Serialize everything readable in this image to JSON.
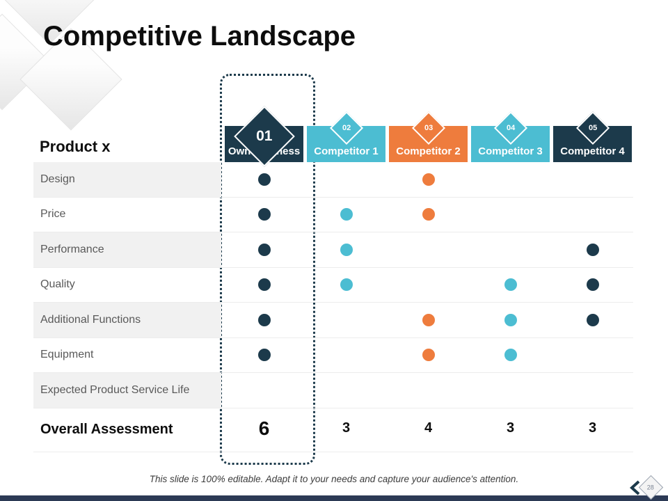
{
  "slide": {
    "title": "Competitive Landscape",
    "footer_note": "This slide is 100% editable. Adapt it to your needs and capture your audience's attention.",
    "page_number": "28"
  },
  "colors": {
    "navy": "#1c3a4b",
    "teal": "#4cbdd2",
    "orange": "#ee7c3d",
    "row_alt": "#f1f1f1",
    "bottom_bar": "#2c3a55"
  },
  "table": {
    "corner_label": "Product x",
    "columns": [
      {
        "number": "01",
        "label": "Own Business",
        "color_key": "navy",
        "highlighted": true
      },
      {
        "number": "02",
        "label": "Competitor 1",
        "color_key": "teal",
        "highlighted": false
      },
      {
        "number": "03",
        "label": "Competitor 2",
        "color_key": "orange",
        "highlighted": false
      },
      {
        "number": "04",
        "label": "Competitor 3",
        "color_key": "teal",
        "highlighted": false
      },
      {
        "number": "05",
        "label": "Competitor 4",
        "color_key": "navy",
        "highlighted": false
      }
    ],
    "rows": [
      {
        "label": "Design",
        "dots": [
          true,
          false,
          true,
          false,
          false
        ]
      },
      {
        "label": "Price",
        "dots": [
          true,
          true,
          true,
          false,
          false
        ]
      },
      {
        "label": "Performance",
        "dots": [
          true,
          true,
          false,
          false,
          true
        ]
      },
      {
        "label": "Quality",
        "dots": [
          true,
          true,
          false,
          true,
          true
        ]
      },
      {
        "label": "Additional Functions",
        "dots": [
          true,
          false,
          true,
          true,
          true
        ]
      },
      {
        "label": "Equipment",
        "dots": [
          true,
          false,
          true,
          true,
          false
        ]
      },
      {
        "label": "Expected Product Service Life",
        "dots": [
          false,
          false,
          false,
          false,
          false
        ]
      }
    ],
    "summary_row": {
      "label": "Overall Assessment",
      "values": [
        "6",
        "3",
        "4",
        "3",
        "3"
      ]
    }
  }
}
